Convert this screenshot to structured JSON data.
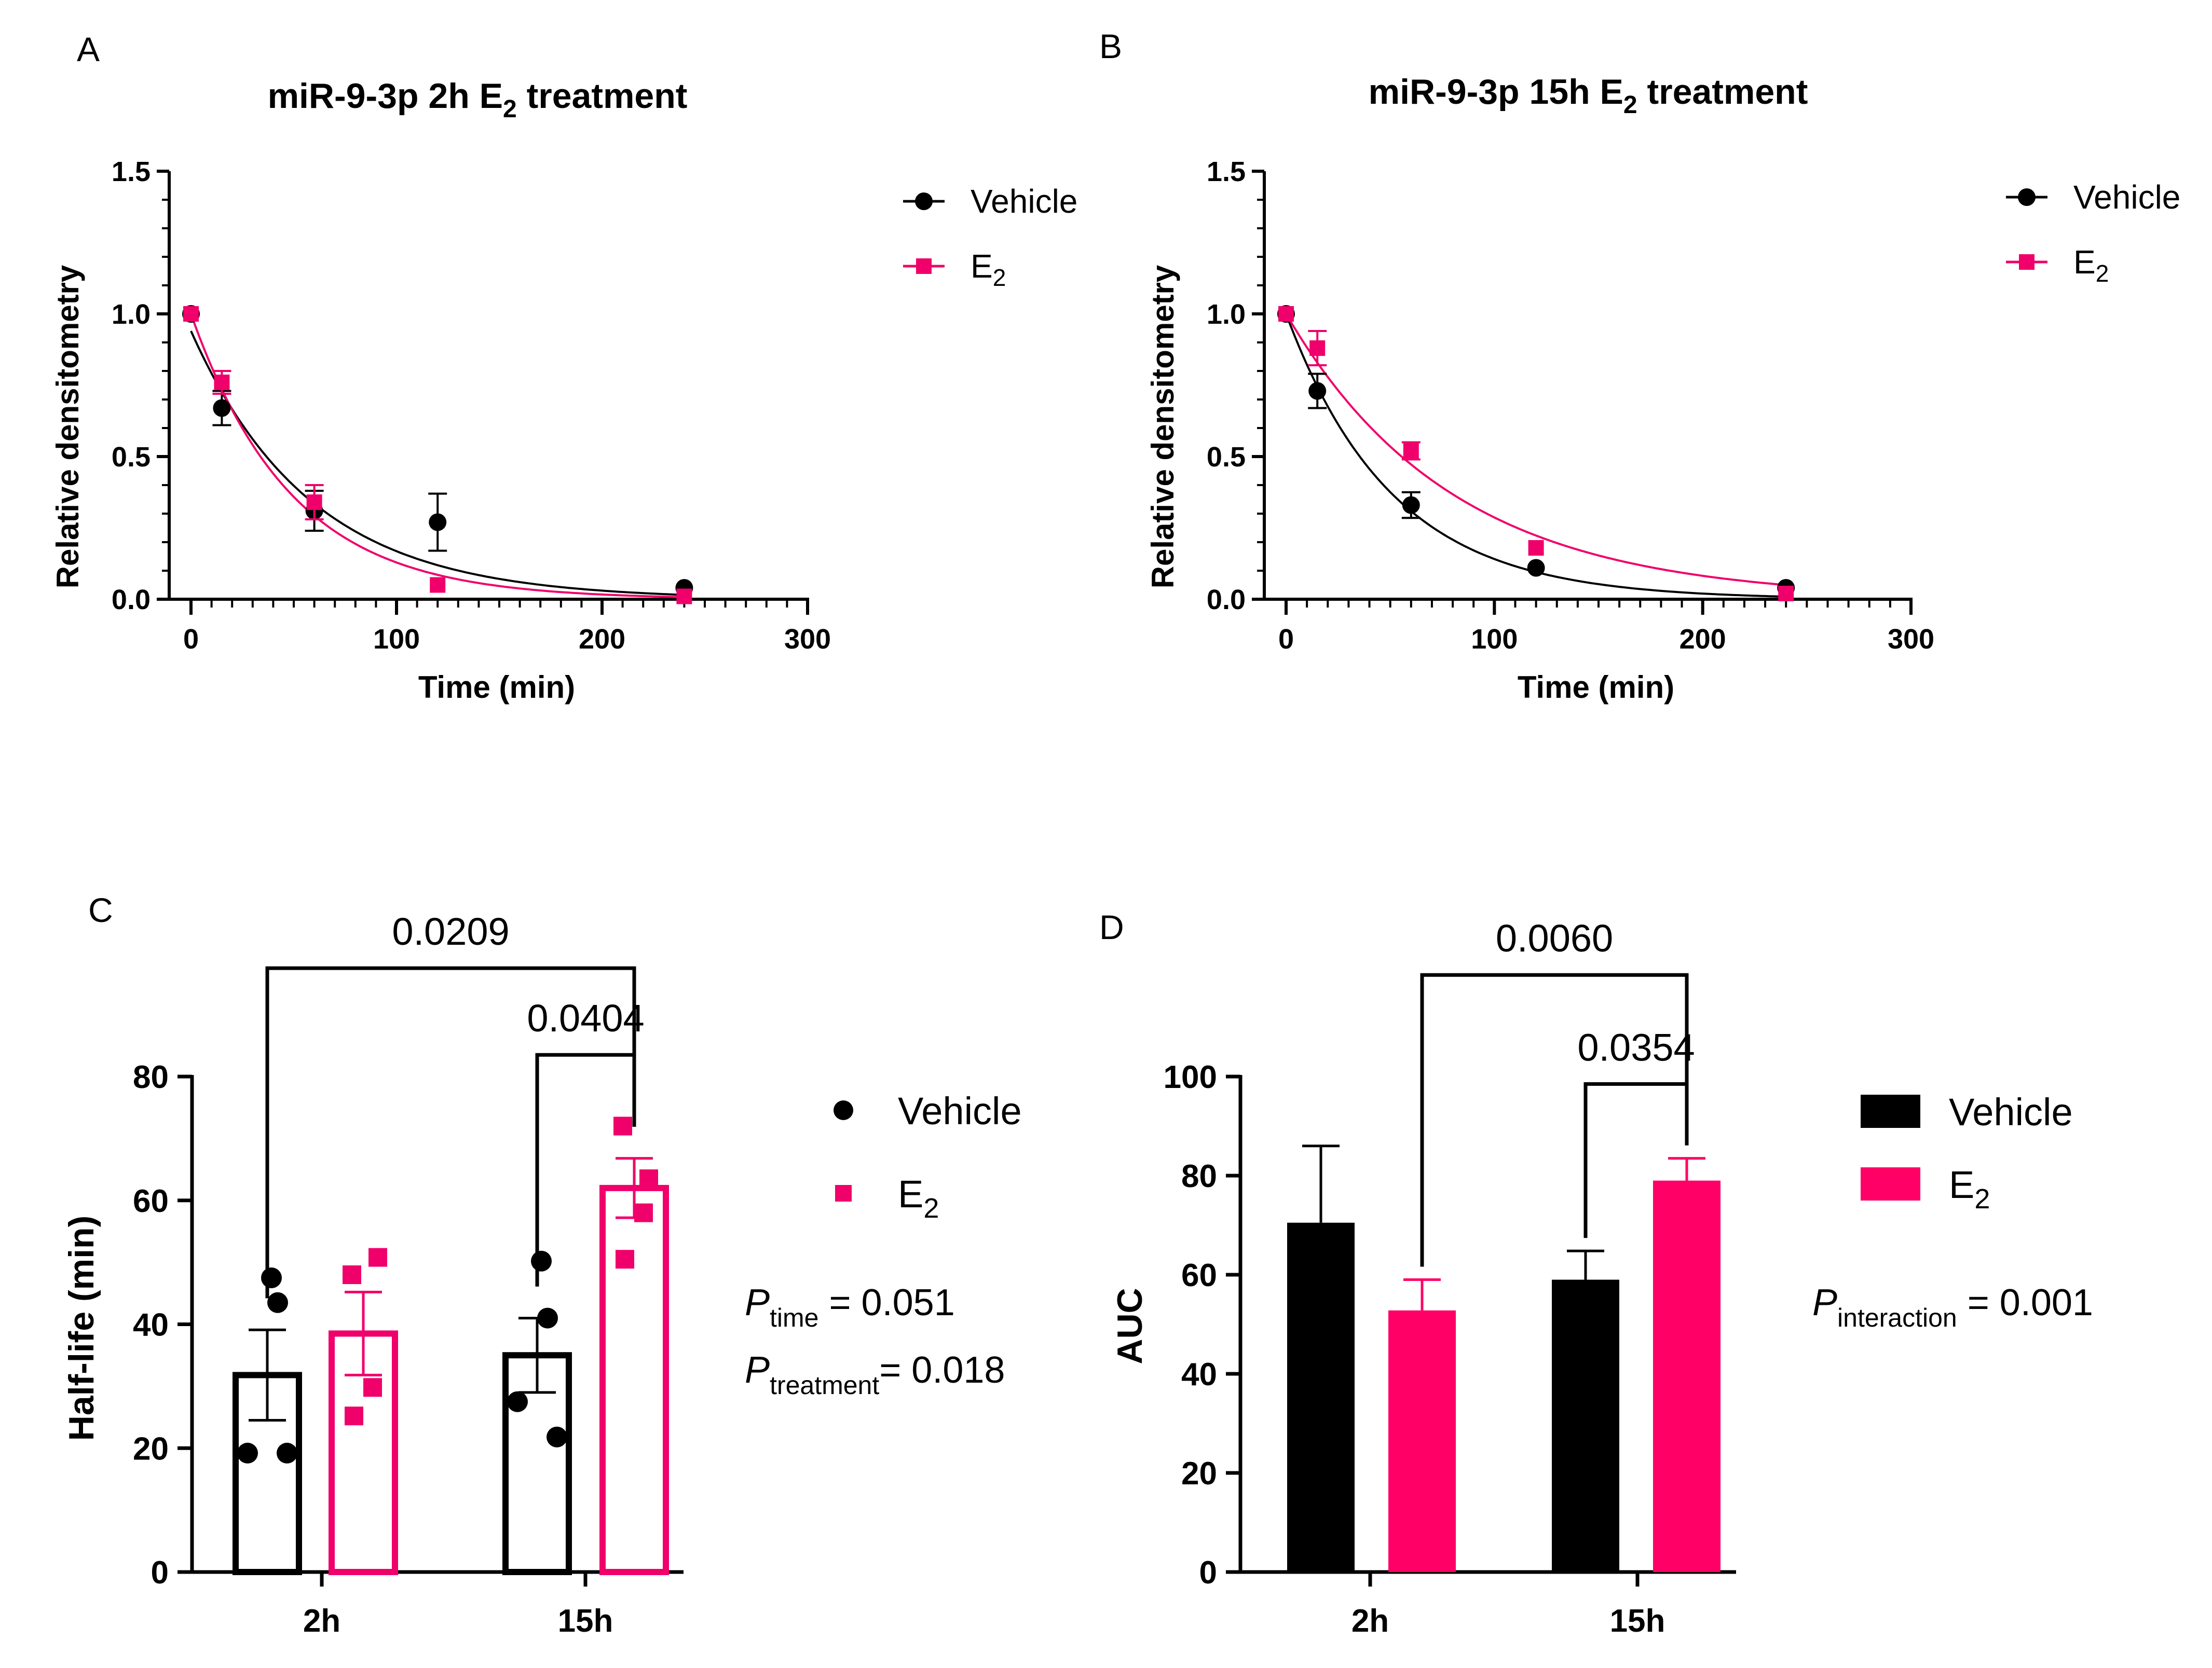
{
  "colors": {
    "vehicle": "#000000",
    "e2": "#F0006A",
    "e2_bar": "#FF0066"
  },
  "legend": {
    "vehicle_label": "Vehicle",
    "e2_main": "E",
    "e2_sub": "2"
  },
  "chart_data": [
    {
      "id": "A",
      "panel_label": "A",
      "type": "scatter",
      "title_main": "miR-9-3p 2h E",
      "title_sub": "2",
      "title_tail": " treatment",
      "xlabel": "Time (min)",
      "ylabel": "Relative densitometry",
      "xlim": [
        0,
        300
      ],
      "ylim": [
        0,
        1.5
      ],
      "xticks": [
        0,
        100,
        200,
        300
      ],
      "yticks": [
        0.0,
        0.5,
        1.0,
        1.5
      ],
      "ytick_labels": [
        "0.0",
        "0.5",
        "1.0",
        "1.5"
      ],
      "legend_position": "top-right",
      "series": [
        {
          "name": "Vehicle",
          "marker": "circle",
          "color": "#000000",
          "x": [
            0,
            15,
            60,
            120,
            240
          ],
          "y": [
            1.0,
            0.67,
            0.31,
            0.27,
            0.04
          ],
          "err": [
            0.0,
            0.06,
            0.07,
            0.1,
            0.0
          ],
          "fit_k": 0.0172,
          "fit_a": 0.94
        },
        {
          "name": "E2",
          "marker": "square",
          "color": "#F0006A",
          "x": [
            0,
            15,
            60,
            120,
            240
          ],
          "y": [
            1.0,
            0.76,
            0.34,
            0.05,
            0.01
          ],
          "err": [
            0.0,
            0.04,
            0.06,
            0.0,
            0.0
          ],
          "fit_k": 0.0205,
          "fit_a": 1.0
        }
      ]
    },
    {
      "id": "B",
      "panel_label": "B",
      "type": "scatter",
      "title_main": "miR-9-3p 15h E",
      "title_sub": "2",
      "title_tail": " treatment",
      "xlabel": "Time (min)",
      "ylabel": "Relative densitometry",
      "xlim": [
        0,
        300
      ],
      "ylim": [
        0,
        1.5
      ],
      "xticks": [
        0,
        100,
        200,
        300
      ],
      "yticks": [
        0.0,
        0.5,
        1.0,
        1.5
      ],
      "ytick_labels": [
        "0.0",
        "0.5",
        "1.0",
        "1.5"
      ],
      "legend_position": "top-right",
      "series": [
        {
          "name": "Vehicle",
          "marker": "circle",
          "color": "#000000",
          "x": [
            0,
            15,
            60,
            120,
            240
          ],
          "y": [
            1.0,
            0.73,
            0.33,
            0.11,
            0.04
          ],
          "err": [
            0.0,
            0.06,
            0.045,
            0.0,
            0.0
          ],
          "fit_k": 0.0196,
          "fit_a": 1.0
        },
        {
          "name": "E2",
          "marker": "square",
          "color": "#F0006A",
          "x": [
            0,
            15,
            60,
            120,
            240
          ],
          "y": [
            1.0,
            0.88,
            0.52,
            0.18,
            0.02
          ],
          "err": [
            0.0,
            0.06,
            0.03,
            0.0,
            0.0
          ],
          "fit_k": 0.0125,
          "fit_a": 1.0
        }
      ]
    },
    {
      "id": "C",
      "panel_label": "C",
      "type": "bar",
      "ylabel": "Half-life (min)",
      "categories": [
        "2h",
        "15h"
      ],
      "ylim": [
        0,
        80
      ],
      "yticks": [
        0,
        20,
        40,
        60,
        80
      ],
      "series": [
        {
          "name": "Vehicle",
          "style": "outline",
          "marker": "circle",
          "color": "#000000",
          "values": [
            31.8,
            35.0
          ],
          "err": [
            7.3,
            6.0
          ],
          "points": [
            [
              47.5,
              43.5,
              19.2,
              19.2
            ],
            [
              50.2,
              41.0,
              27.5,
              21.8
            ]
          ]
        },
        {
          "name": "E2",
          "style": "outline",
          "marker": "square",
          "color": "#F0006A",
          "values": [
            38.5,
            62.0
          ],
          "err": [
            6.7,
            4.8
          ],
          "points": [
            [
              48.0,
              50.8,
              29.8,
              25.2
            ],
            [
              72.0,
              63.5,
              58.0,
              50.5
            ]
          ]
        }
      ],
      "comparisons": [
        {
          "label": "0.0209",
          "from": [
            0,
            0
          ],
          "to": [
            1,
            1
          ],
          "level": 97.5
        },
        {
          "label": "0.0404",
          "from": [
            1,
            0
          ],
          "to": [
            1,
            1
          ],
          "level": 83.5
        }
      ],
      "stats": [
        {
          "main": "P",
          "sub": "time",
          "tail": " = 0.051"
        },
        {
          "main": "P",
          "sub": "treatment",
          "tail": "= 0.018"
        }
      ]
    },
    {
      "id": "D",
      "panel_label": "D",
      "type": "bar",
      "ylabel": "AUC",
      "categories": [
        "2h",
        "15h"
      ],
      "ylim": [
        0,
        100
      ],
      "yticks": [
        0,
        20,
        40,
        60,
        80,
        100
      ],
      "series": [
        {
          "name": "Vehicle",
          "style": "filled",
          "color": "#000000",
          "values": [
            70.5,
            59.0
          ],
          "err": [
            15.5,
            5.8
          ]
        },
        {
          "name": "E2",
          "style": "filled",
          "color": "#FF0066",
          "values": [
            52.8,
            79.0
          ],
          "err": [
            6.2,
            4.5
          ]
        }
      ],
      "comparisons": [
        {
          "label": "0.0060",
          "from": [
            0,
            1
          ],
          "to": [
            1,
            1
          ],
          "level": 120.5
        },
        {
          "label": "0.0354",
          "from": [
            1,
            0
          ],
          "to": [
            1,
            1
          ],
          "level": 98.5
        }
      ],
      "stats": [
        {
          "main": "P",
          "sub": "interaction",
          "tail": " = 0.001"
        }
      ]
    }
  ]
}
